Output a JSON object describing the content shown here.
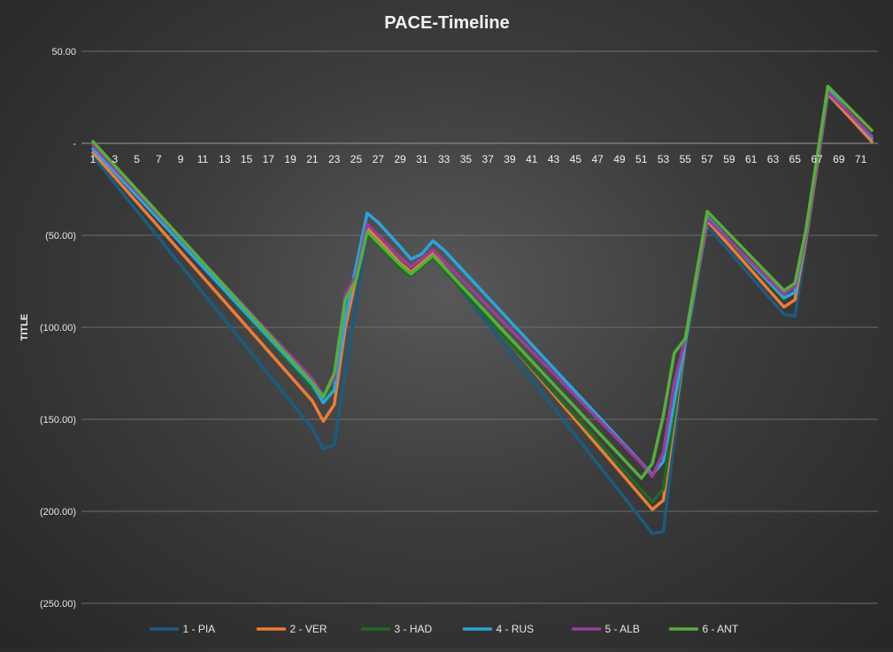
{
  "chart_data": {
    "type": "line",
    "title": "PACE-Timeline",
    "xlabel": "",
    "ylabel": "TITLE",
    "ylim": [
      -250,
      50
    ],
    "y_ticks": [
      50,
      0,
      -50,
      -100,
      -150,
      -200,
      -250
    ],
    "y_tick_labels": [
      "50.00",
      "-",
      "(50.00)",
      "(100.00)",
      "(150.00)",
      "(200.00)",
      "(250.00)"
    ],
    "x_range": [
      1,
      72
    ],
    "x_tick_labels": [
      "1",
      "3",
      "5",
      "7",
      "9",
      "11",
      "13",
      "15",
      "17",
      "19",
      "21",
      "23",
      "25",
      "27",
      "29",
      "31",
      "33",
      "35",
      "37",
      "39",
      "41",
      "43",
      "45",
      "47",
      "49",
      "51",
      "53",
      "55",
      "57",
      "59",
      "61",
      "63",
      "65",
      "67",
      "69",
      "71"
    ],
    "grid": true,
    "legend_position": "bottom",
    "series": [
      {
        "name": "1 - PIA",
        "color": "#1b5c80",
        "points": [
          [
            1,
            -7
          ],
          [
            21,
            -155
          ],
          [
            22,
            -166
          ],
          [
            23,
            -164
          ],
          [
            24,
            -125
          ],
          [
            26,
            -47
          ],
          [
            29,
            -65
          ],
          [
            30,
            -70
          ],
          [
            32,
            -60
          ],
          [
            52,
            -212
          ],
          [
            53,
            -211
          ],
          [
            55,
            -110
          ],
          [
            57,
            -45
          ],
          [
            64,
            -93
          ],
          [
            65,
            -94
          ],
          [
            66,
            -55
          ],
          [
            68,
            26
          ],
          [
            72,
            2
          ]
        ]
      },
      {
        "name": "2 - VER",
        "color": "#f07b34",
        "points": [
          [
            1,
            -5
          ],
          [
            21,
            -140
          ],
          [
            22,
            -151
          ],
          [
            23,
            -142
          ],
          [
            24,
            -100
          ],
          [
            26,
            -46
          ],
          [
            29,
            -65
          ],
          [
            30,
            -70
          ],
          [
            32,
            -60
          ],
          [
            52,
            -199
          ],
          [
            53,
            -194
          ],
          [
            55,
            -108
          ],
          [
            57,
            -42
          ],
          [
            64,
            -89
          ],
          [
            65,
            -85
          ],
          [
            66,
            -52
          ],
          [
            68,
            27
          ],
          [
            72,
            1
          ]
        ]
      },
      {
        "name": "3 - HAD",
        "color": "#1e6b27",
        "points": [
          [
            1,
            -1
          ],
          [
            21,
            -133
          ],
          [
            22,
            -139
          ],
          [
            23,
            -132
          ],
          [
            24,
            -90
          ],
          [
            26,
            -49
          ],
          [
            29,
            -68
          ],
          [
            30,
            -72
          ],
          [
            32,
            -62
          ],
          [
            52,
            -195
          ],
          [
            53,
            -188
          ],
          [
            55,
            -106
          ],
          [
            57,
            -40
          ],
          [
            64,
            -85
          ],
          [
            65,
            -80
          ],
          [
            66,
            -50
          ],
          [
            68,
            28
          ],
          [
            72,
            4
          ]
        ]
      },
      {
        "name": "4 - RUS",
        "color": "#2aa4de",
        "points": [
          [
            1,
            -3
          ],
          [
            21,
            -131
          ],
          [
            22,
            -141
          ],
          [
            23,
            -134
          ],
          [
            24,
            -95
          ],
          [
            26,
            -38
          ],
          [
            27,
            -43
          ],
          [
            29,
            -56
          ],
          [
            30,
            -63
          ],
          [
            31,
            -60
          ],
          [
            32,
            -53
          ],
          [
            33,
            -58
          ],
          [
            52,
            -180
          ],
          [
            53,
            -173
          ],
          [
            55,
            -108
          ],
          [
            57,
            -40
          ],
          [
            64,
            -84
          ],
          [
            65,
            -81
          ],
          [
            66,
            -50
          ],
          [
            68,
            29
          ],
          [
            72,
            3
          ]
        ]
      },
      {
        "name": "5 - ALB",
        "color": "#9b3d9a",
        "points": [
          [
            1,
            -1
          ],
          [
            21,
            -128
          ],
          [
            22,
            -137
          ],
          [
            23,
            -128
          ],
          [
            24,
            -82
          ],
          [
            25,
            -72
          ],
          [
            26,
            -44
          ],
          [
            29,
            -62
          ],
          [
            30,
            -67
          ],
          [
            32,
            -58
          ],
          [
            51,
            -174
          ],
          [
            52,
            -181
          ],
          [
            53,
            -168
          ],
          [
            54,
            -130
          ],
          [
            55,
            -106
          ],
          [
            57,
            -41
          ],
          [
            64,
            -82
          ],
          [
            65,
            -78
          ],
          [
            66,
            -50
          ],
          [
            68,
            28
          ],
          [
            72,
            4
          ]
        ]
      },
      {
        "name": "6 - ANT",
        "color": "#55b039",
        "points": [
          [
            1,
            1
          ],
          [
            21,
            -130
          ],
          [
            22,
            -138
          ],
          [
            23,
            -125
          ],
          [
            24,
            -85
          ],
          [
            25,
            -74
          ],
          [
            26,
            -48
          ],
          [
            29,
            -66
          ],
          [
            30,
            -71
          ],
          [
            32,
            -61
          ],
          [
            51,
            -182
          ],
          [
            52,
            -174
          ],
          [
            53,
            -148
          ],
          [
            54,
            -114
          ],
          [
            55,
            -106
          ],
          [
            57,
            -37
          ],
          [
            64,
            -80
          ],
          [
            65,
            -76
          ],
          [
            66,
            -47
          ],
          [
            68,
            31
          ],
          [
            72,
            7
          ]
        ]
      }
    ]
  }
}
